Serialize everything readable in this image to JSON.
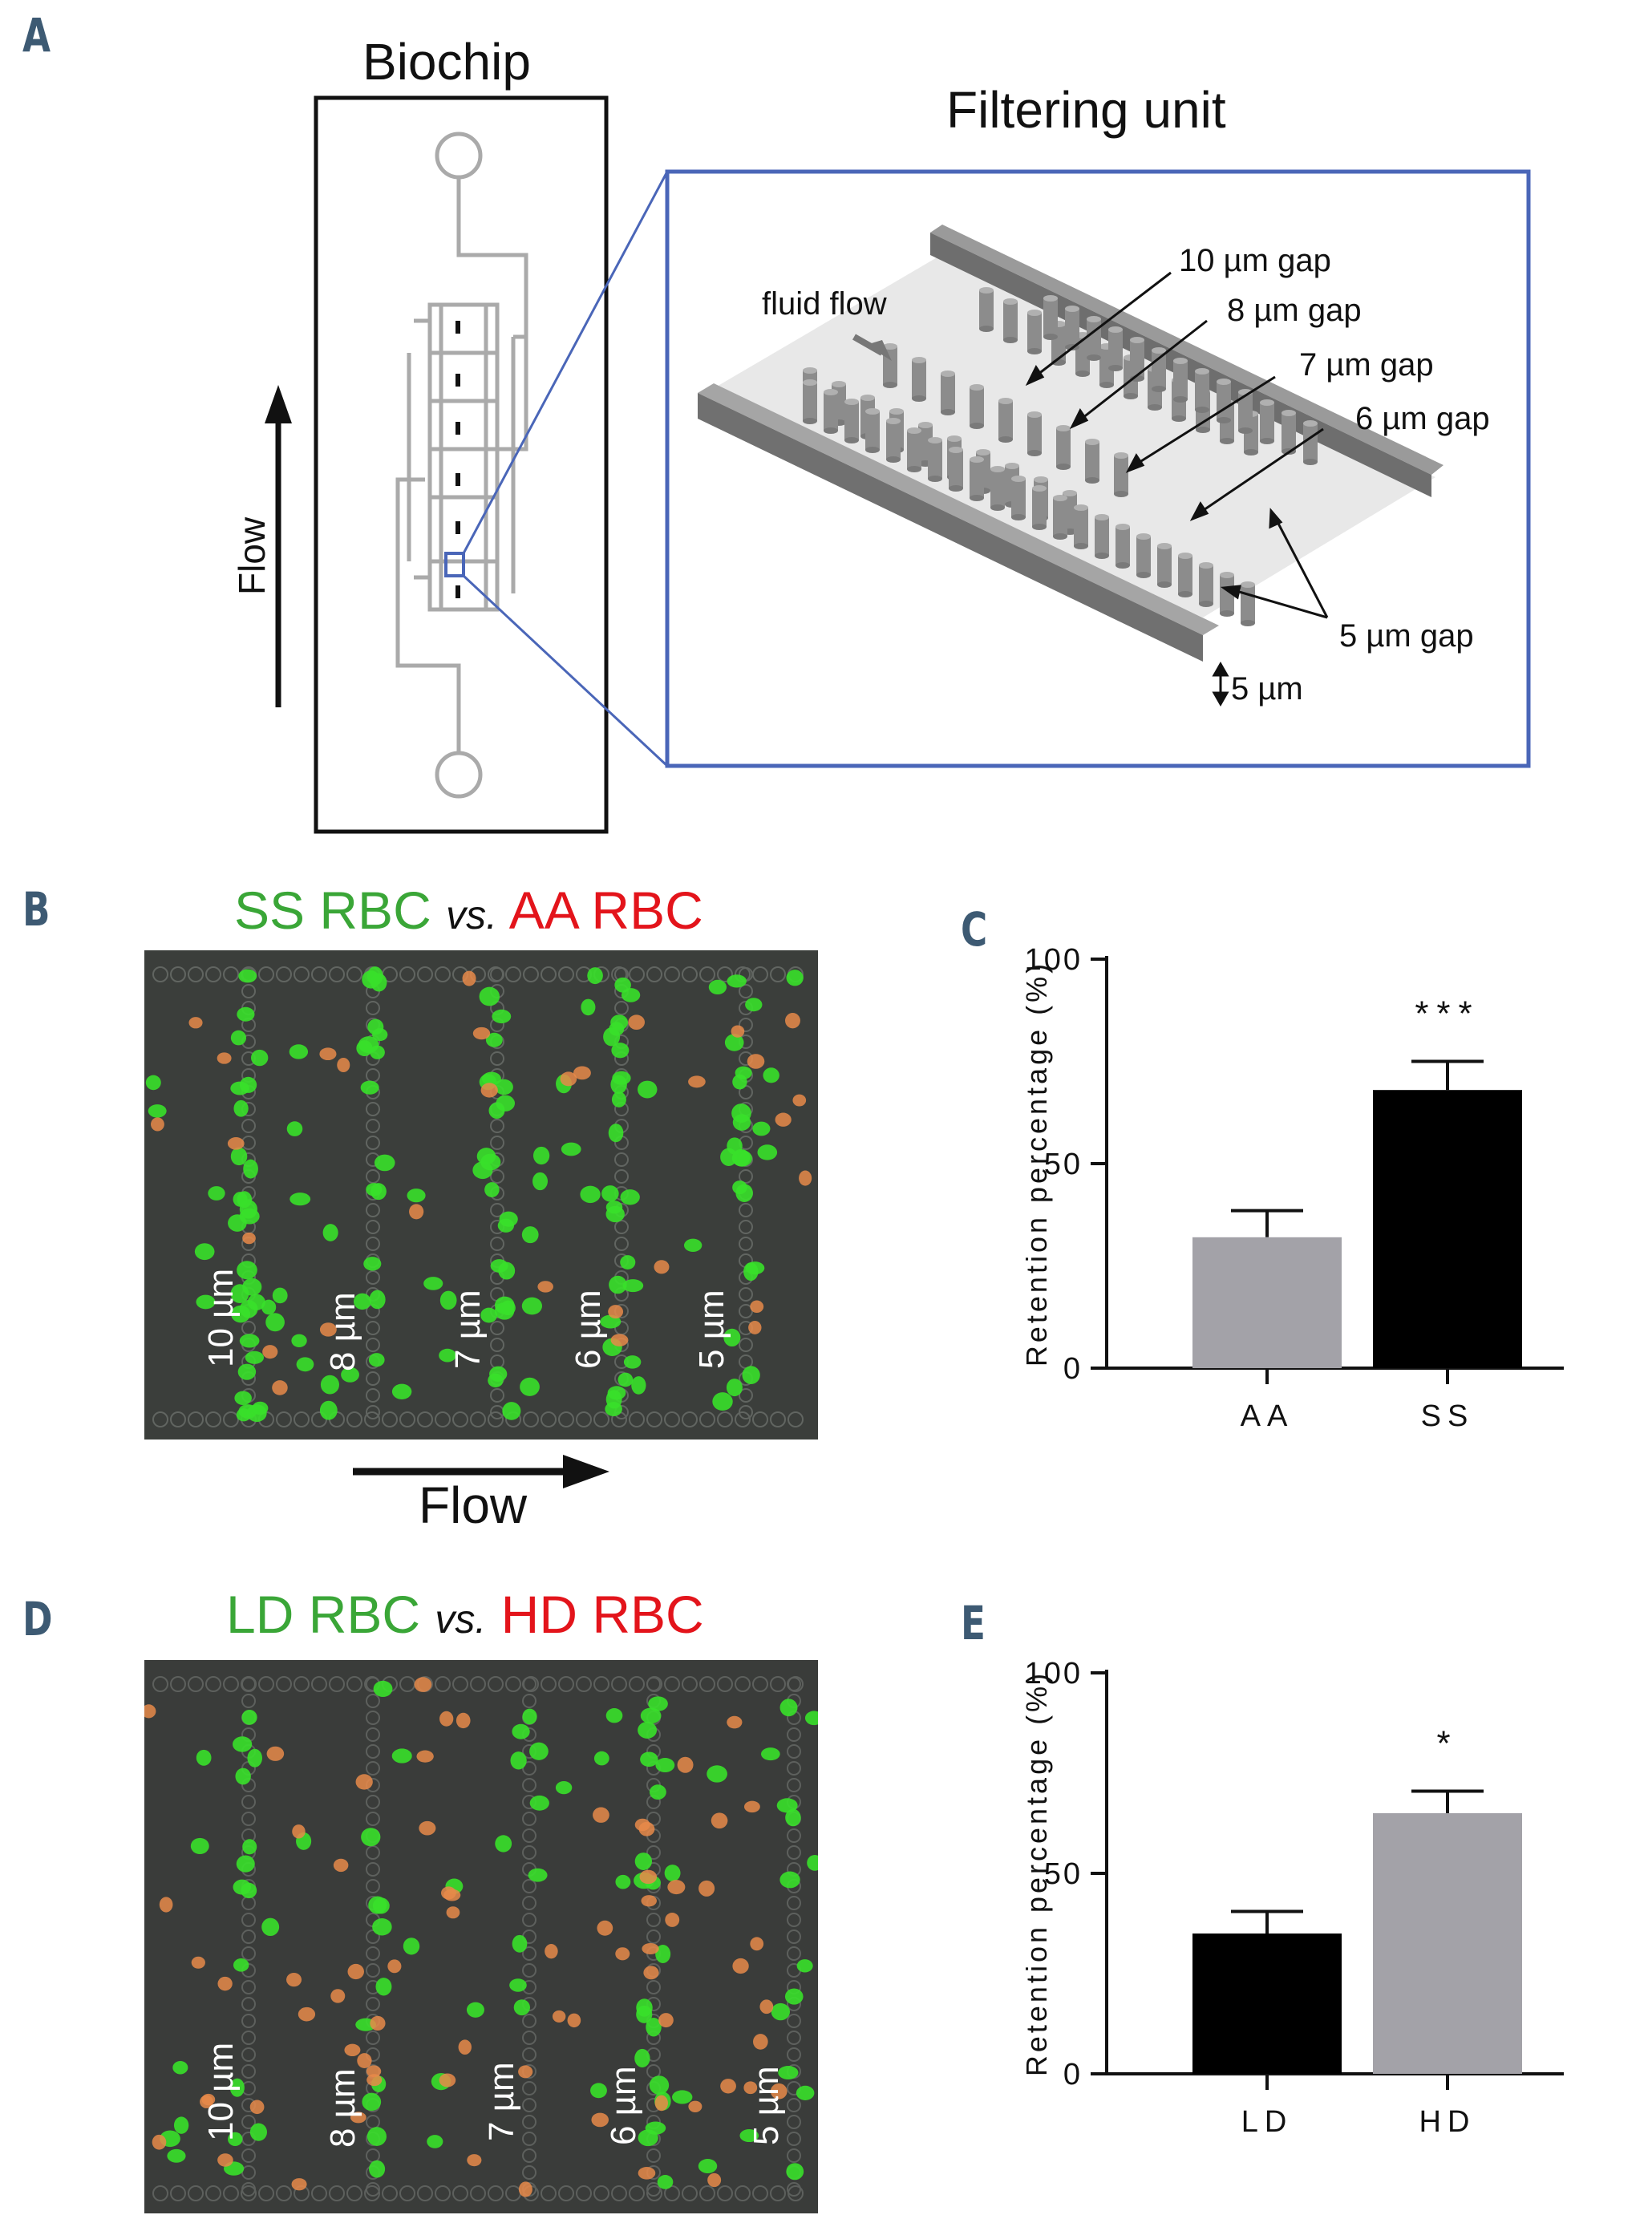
{
  "panels": {
    "a": {
      "letter": "A",
      "biochip_title": "Biochip",
      "flow_label": "Flow",
      "filtering_title": "Filtering unit",
      "fluid_flow_label": "fluid flow",
      "gap_labels": [
        "10 µm gap",
        "8 µm gap",
        "7 µm gap",
        "6 µm gap",
        "5 µm gap"
      ],
      "height_label": "5 µm"
    },
    "b": {
      "letter": "B",
      "title_left": "SS RBC",
      "title_vs": "vs.",
      "title_right": "AA RBC",
      "gap_labels": [
        "10 µm",
        "8 µm",
        "7 µm",
        "6 µm",
        "5 µm"
      ],
      "flow_label": "Flow"
    },
    "c": {
      "letter": "C"
    },
    "d": {
      "letter": "D",
      "title_left": "LD RBC",
      "title_vs": "vs.",
      "title_right": "HD RBC",
      "gap_labels": [
        "10 µm",
        "8 µm",
        "7 µm",
        "6 µm",
        "5 µm"
      ]
    },
    "e": {
      "letter": "E"
    }
  },
  "colors": {
    "green": "#3aa637",
    "red": "#e3141b",
    "bar_gray": "#a3a2a8",
    "bar_black": "#000000",
    "letter": "#3d5a73",
    "inset_border": "#4a66b8"
  },
  "chart_data": [
    {
      "type": "bar",
      "panel": "C",
      "categories": [
        "AA",
        "SS"
      ],
      "values": [
        32,
        68
      ],
      "errors": [
        6.5,
        7
      ],
      "bar_colors": [
        "#a3a2a8",
        "#000000"
      ],
      "significance": [
        "",
        "***"
      ],
      "ylabel": "Retention percentage (%)",
      "ylim": [
        0,
        100
      ],
      "yticks": [
        0,
        50,
        100
      ]
    },
    {
      "type": "bar",
      "panel": "E",
      "categories": [
        "LD",
        "HD"
      ],
      "values": [
        35,
        65
      ],
      "errors": [
        5.5,
        5.5
      ],
      "bar_colors": [
        "#000000",
        "#a3a2a8"
      ],
      "significance": [
        "",
        "*"
      ],
      "ylabel": "Retention percentage (%)",
      "ylim": [
        0,
        100
      ],
      "yticks": [
        0,
        50,
        100
      ]
    }
  ]
}
